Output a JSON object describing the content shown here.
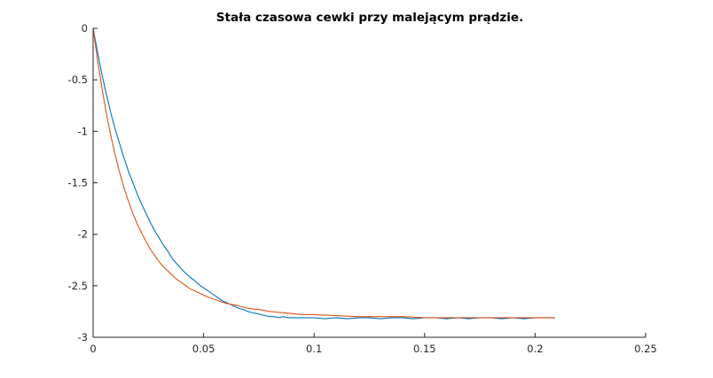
{
  "chart_data": {
    "type": "line",
    "title": "Stała czasowa cewki przy malejącym prądzie.",
    "xlabel": "",
    "ylabel": "",
    "xlim": [
      0,
      0.25
    ],
    "ylim": [
      -3,
      0
    ],
    "grid": false,
    "legend": "none",
    "x_ticks": [
      {
        "value": 0,
        "label": "0"
      },
      {
        "value": 0.05,
        "label": "0.05"
      },
      {
        "value": 0.1,
        "label": "0.1"
      },
      {
        "value": 0.15,
        "label": "0.15"
      },
      {
        "value": 0.2,
        "label": "0.2"
      },
      {
        "value": 0.25,
        "label": "0.25"
      }
    ],
    "y_ticks": [
      {
        "value": 0,
        "label": "0"
      },
      {
        "value": -0.5,
        "label": "-0.5"
      },
      {
        "value": -1,
        "label": "-1"
      },
      {
        "value": -1.5,
        "label": "-1.5"
      },
      {
        "value": -2,
        "label": "-2"
      },
      {
        "value": -2.5,
        "label": "-2.5"
      },
      {
        "value": -3,
        "label": "-3"
      }
    ],
    "series": [
      {
        "color": "#0072BD",
        "x": [
          0,
          0.002,
          0.004,
          0.006,
          0.008,
          0.01,
          0.012,
          0.014,
          0.016,
          0.018,
          0.02,
          0.022,
          0.024,
          0.026,
          0.028,
          0.03,
          0.032,
          0.034,
          0.036,
          0.038,
          0.04,
          0.042,
          0.044,
          0.046,
          0.048,
          0.05,
          0.052,
          0.054,
          0.056,
          0.058,
          0.06,
          0.062,
          0.064,
          0.066,
          0.068,
          0.07,
          0.072,
          0.074,
          0.076,
          0.078,
          0.08,
          0.082,
          0.084,
          0.086,
          0.088,
          0.09,
          0.095,
          0.1,
          0.105,
          0.11,
          0.115,
          0.12,
          0.125,
          0.13,
          0.135,
          0.14,
          0.145,
          0.15,
          0.155,
          0.16,
          0.165,
          0.17,
          0.175,
          0.18,
          0.185,
          0.19,
          0.195,
          0.2,
          0.205,
          0.209
        ],
        "y": [
          0,
          -0.23,
          -0.45,
          -0.64,
          -0.82,
          -0.98,
          -1.12,
          -1.26,
          -1.39,
          -1.5,
          -1.61,
          -1.71,
          -1.8,
          -1.89,
          -1.97,
          -2.04,
          -2.11,
          -2.17,
          -2.24,
          -2.29,
          -2.34,
          -2.38,
          -2.42,
          -2.45,
          -2.49,
          -2.52,
          -2.55,
          -2.58,
          -2.61,
          -2.64,
          -2.66,
          -2.68,
          -2.7,
          -2.72,
          -2.73,
          -2.75,
          -2.76,
          -2.77,
          -2.78,
          -2.79,
          -2.8,
          -2.8,
          -2.81,
          -2.8,
          -2.81,
          -2.81,
          -2.81,
          -2.81,
          -2.82,
          -2.81,
          -2.82,
          -2.81,
          -2.81,
          -2.82,
          -2.81,
          -2.81,
          -2.82,
          -2.81,
          -2.81,
          -2.82,
          -2.81,
          -2.82,
          -2.81,
          -2.81,
          -2.82,
          -2.81,
          -2.82,
          -2.81,
          -2.81,
          -2.81
        ]
      },
      {
        "color": "#D95319",
        "x": [
          0,
          0.002,
          0.004,
          0.006,
          0.008,
          0.01,
          0.012,
          0.014,
          0.016,
          0.018,
          0.02,
          0.022,
          0.024,
          0.026,
          0.028,
          0.03,
          0.032,
          0.034,
          0.036,
          0.038,
          0.04,
          0.044,
          0.048,
          0.052,
          0.056,
          0.06,
          0.065,
          0.07,
          0.075,
          0.08,
          0.085,
          0.09,
          0.095,
          0.1,
          0.11,
          0.12,
          0.13,
          0.14,
          0.15,
          0.16,
          0.17,
          0.18,
          0.19,
          0.2,
          0.209
        ],
        "y": [
          0,
          -0.31,
          -0.58,
          -0.83,
          -1.04,
          -1.23,
          -1.4,
          -1.55,
          -1.68,
          -1.8,
          -1.9,
          -1.99,
          -2.07,
          -2.15,
          -2.21,
          -2.27,
          -2.32,
          -2.36,
          -2.4,
          -2.44,
          -2.47,
          -2.53,
          -2.57,
          -2.61,
          -2.64,
          -2.67,
          -2.69,
          -2.72,
          -2.73,
          -2.75,
          -2.76,
          -2.77,
          -2.78,
          -2.78,
          -2.79,
          -2.8,
          -2.8,
          -2.8,
          -2.81,
          -2.81,
          -2.81,
          -2.81,
          -2.81,
          -2.81,
          -2.81
        ]
      }
    ]
  }
}
